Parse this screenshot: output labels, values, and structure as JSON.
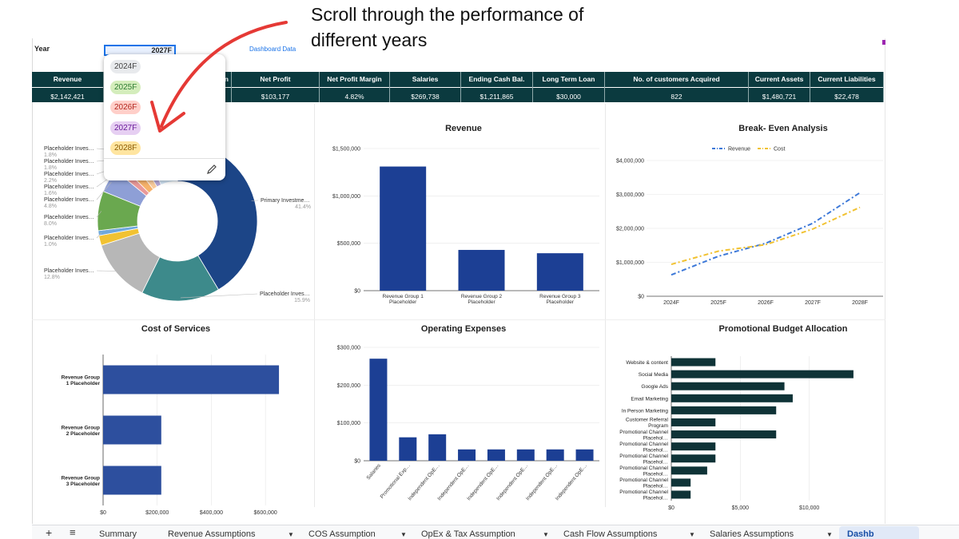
{
  "annotation": {
    "line1": "Scroll through the performance of",
    "line2": "different years"
  },
  "header": {
    "year_label": "Year",
    "year_value": "2027F",
    "dashboard_link": "Dashboard Data"
  },
  "dropdown": {
    "options": [
      "2024F",
      "2025F",
      "2026F",
      "2027F",
      "2028F"
    ],
    "colors": [
      "#e8eaed",
      "#d4edbc",
      "#ffcfc9",
      "#e6cff2",
      "#ffe5a0"
    ],
    "text_colors": [
      "#444444",
      "#2e7d32",
      "#b3261e",
      "#6a1b9a",
      "#8a5a00"
    ]
  },
  "kpis": [
    {
      "label": "Revenue",
      "value": "$2,142,421"
    },
    {
      "label": "gin",
      "value": ""
    },
    {
      "label": "Net Profit",
      "value": "$103,177"
    },
    {
      "label": "Net Profit Margin",
      "value": "4.82%"
    },
    {
      "label": "Salaries",
      "value": "$269,738"
    },
    {
      "label": "Ending Cash Bal.",
      "value": "$1,211,865"
    },
    {
      "label": "Long Term Loan",
      "value": "$30,000"
    },
    {
      "label": "No. of customers Acquired",
      "value": "822"
    },
    {
      "label": "Current Assets",
      "value": "$1,480,721"
    },
    {
      "label": "Current Liabilities",
      "value": "$22,478"
    }
  ],
  "charts": {
    "revenue_title": "Revenue",
    "breakeven_title": "Break- Even Analysis",
    "cos_title": "Cost of Services",
    "opex_title": "Operating Expenses",
    "promo_title": "Promotional Budget Allocation"
  },
  "tabs": [
    "Summary",
    "Revenue Assumptions",
    "COS Assumption",
    "OpEx & Tax Assumption",
    "Cash Flow Assumptions",
    "Salaries Assumptions",
    "Dashb"
  ],
  "chart_data": [
    {
      "type": "pie",
      "title": "",
      "slices": [
        {
          "label": "Primary Investme…",
          "pct": "41.4%",
          "value": 41.4,
          "color": "#1c4587"
        },
        {
          "label": "Placeholder Inves…",
          "pct": "15.9%",
          "value": 15.9,
          "color": "#3d8a8b"
        },
        {
          "label": "Placeholder Inves…",
          "pct": "12.8%",
          "value": 12.8,
          "color": "#b7b7b7"
        },
        {
          "label": "",
          "pct": "",
          "value": 2.0,
          "color": "#f1c232"
        },
        {
          "label": "Placeholder Inves…",
          "pct": "1.0%",
          "value": 1.0,
          "color": "#6fa8dc"
        },
        {
          "label": "Placeholder Inves…",
          "pct": "8.0%",
          "value": 8.0,
          "color": "#6aa84f"
        },
        {
          "label": "Placeholder Inves…",
          "pct": "4.8%",
          "value": 4.8,
          "color": "#8e9fd6"
        },
        {
          "label": "Placeholder Inves…",
          "pct": "1.6%",
          "value": 1.6,
          "color": "#ea9999"
        },
        {
          "label": "Placeholder Inves…",
          "pct": "2.2%",
          "value": 2.2,
          "color": "#f6b26b"
        },
        {
          "label": "Placeholder Inves…",
          "pct": "1.8%",
          "value": 1.8,
          "color": "#f9cb9c"
        },
        {
          "label": "Placeholder Inves…",
          "pct": "1.8%",
          "value": 1.8,
          "color": "#b4a7d6"
        },
        {
          "label": "",
          "pct": "",
          "value": 6.7,
          "color": "#cfe2f3"
        }
      ]
    },
    {
      "type": "bar",
      "title": "Revenue",
      "categories": [
        "Revenue Group 1 Placeholder",
        "Revenue Group 2 Placeholder",
        "Revenue Group 3 Placeholder"
      ],
      "values": [
        1310000,
        430000,
        395000
      ],
      "yticks": [
        "$0",
        "$500,000",
        "$1,000,000",
        "$1,500,000"
      ],
      "ylim": [
        0,
        1500000
      ],
      "color": "#1c3f94"
    },
    {
      "type": "line",
      "title": "Break- Even Analysis",
      "x": [
        "2024F",
        "2025F",
        "2026F",
        "2027F",
        "2028F"
      ],
      "series": [
        {
          "name": "Revenue",
          "values": [
            630000,
            1180000,
            1560000,
            2150000,
            3050000
          ],
          "color": "#3c78d8"
        },
        {
          "name": "Cost",
          "values": [
            940000,
            1330000,
            1520000,
            1980000,
            2620000
          ],
          "color": "#f1c232"
        }
      ],
      "yticks": [
        "$0",
        "$1,000,000",
        "$2,000,000",
        "$3,000,000",
        "$4,000,000"
      ],
      "ylim": [
        0,
        4000000
      ]
    },
    {
      "type": "bar",
      "orientation": "horizontal",
      "title": "Cost of Services",
      "categories": [
        "Revenue Group 1 Placeholder",
        "Revenue Group 2 Placeholder",
        "Revenue Group 3 Placeholder"
      ],
      "values": [
        650000,
        215000,
        215000
      ],
      "xticks": [
        "$0",
        "$200,000",
        "$400,000",
        "$600,000"
      ],
      "xlim": [
        0,
        700000
      ],
      "color": "#2d4f9e"
    },
    {
      "type": "bar",
      "title": "Operating Expenses",
      "categories": [
        "Salaries",
        "Promotional Exp…",
        "Independent OpE…",
        "Independent OpE…",
        "Independent OpE…",
        "Independent OpE…",
        "Independent OpE…",
        "Independent OpE…"
      ],
      "values": [
        270000,
        62000,
        70000,
        30000,
        30000,
        30000,
        30000,
        30000
      ],
      "yticks": [
        "$0",
        "$100,000",
        "$200,000",
        "$300,000"
      ],
      "ylim": [
        0,
        300000
      ],
      "color": "#1c3f94"
    },
    {
      "type": "bar",
      "orientation": "horizontal",
      "title": "Promotional Budget Allocation",
      "categories": [
        "Website & content",
        "Social Media",
        "Google Ads",
        "Email Marketing",
        "In Person Marketing",
        "Customer Referral Program",
        "Promotional Channel Placehol…",
        "Promotional Channel Placehol…",
        "Promotional Channel Placehol…",
        "Promotional Channel Placehol…",
        "Promotional Channel Placehol…",
        "Promotional Channel Placehol…"
      ],
      "values": [
        3200,
        13200,
        8200,
        8800,
        7600,
        3200,
        7600,
        3200,
        3200,
        2600,
        1400,
        1400
      ],
      "xticks": [
        "$0",
        "$5,000",
        "$10,000"
      ],
      "xlim": [
        0,
        15000
      ],
      "color": "#0f3337"
    }
  ]
}
